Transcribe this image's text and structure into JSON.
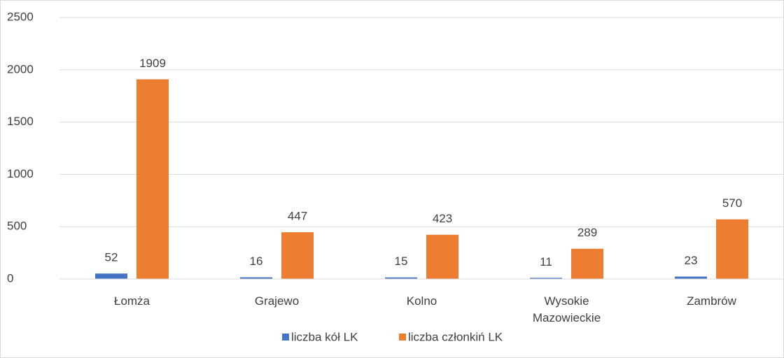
{
  "chart_data": {
    "type": "bar",
    "categories": [
      "Łomża",
      "Grajewo",
      "Kolno",
      "Wysokie Mazowieckie",
      "Zambrów"
    ],
    "series": [
      {
        "name": "liczba kół LK",
        "color": "#4472c4",
        "values": [
          52,
          16,
          15,
          11,
          23
        ]
      },
      {
        "name": "liczba członkiń LK",
        "color": "#ed7d31",
        "values": [
          1909,
          447,
          423,
          289,
          570
        ]
      }
    ],
    "ylim": [
      0,
      2500
    ],
    "yticks": [
      0,
      500,
      1000,
      1500,
      2000,
      2500
    ],
    "grid": true,
    "legend": "bottom"
  }
}
